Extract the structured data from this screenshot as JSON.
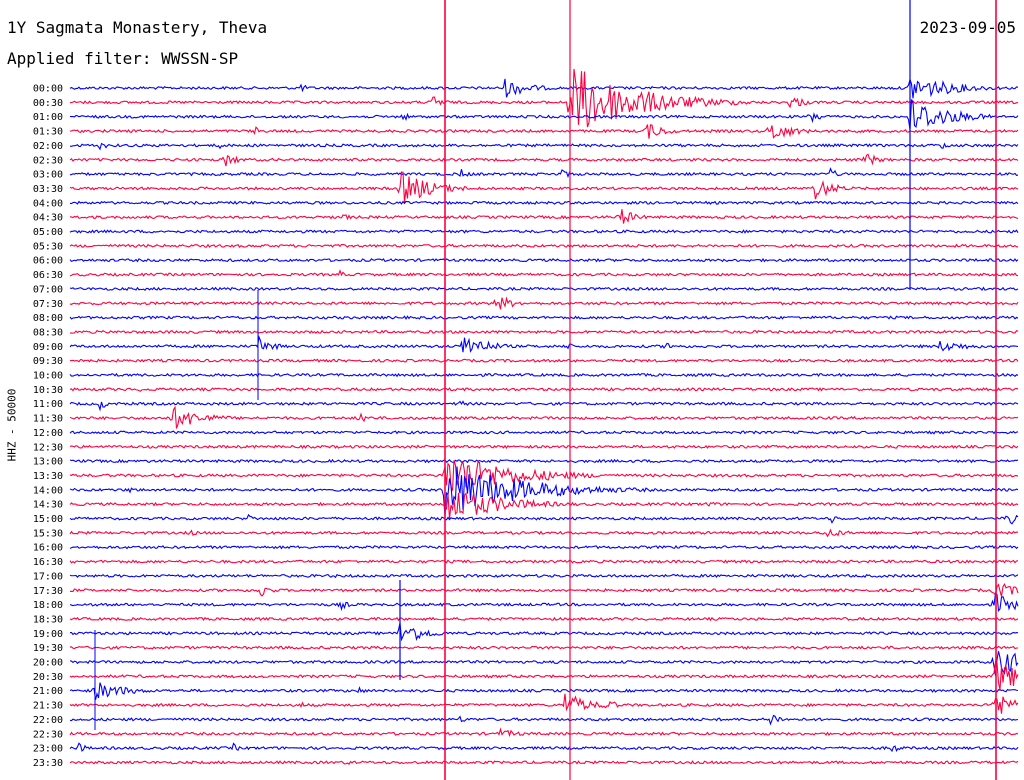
{
  "header": {
    "station": "1Y Sagmata Monastery, Theva",
    "filter": "Applied filter: WWSSN-SP",
    "date": "2023-09-05"
  },
  "chart_data": {
    "type": "line",
    "title": "1Y Sagmata Monastery, Theva",
    "subtitle": "Applied filter: WWSSN-SP",
    "date": "2023-09-05",
    "ylabel": "HHZ - 50000",
    "row_times": [
      "00:00",
      "00:30",
      "01:00",
      "01:30",
      "02:00",
      "02:30",
      "03:00",
      "03:30",
      "04:00",
      "04:30",
      "05:00",
      "05:30",
      "06:00",
      "06:30",
      "07:00",
      "07:30",
      "08:00",
      "08:30",
      "09:00",
      "09:30",
      "10:00",
      "10:30",
      "11:00",
      "11:30",
      "12:00",
      "12:30",
      "13:00",
      "13:30",
      "14:00",
      "14:30",
      "15:00",
      "15:30",
      "16:00",
      "16:30",
      "17:00",
      "17:30",
      "18:00",
      "18:30",
      "19:00",
      "19:30",
      "20:00",
      "20:30",
      "21:00",
      "21:30",
      "22:00",
      "22:30",
      "23:00",
      "23:30"
    ],
    "trace_colors": [
      "#0000ff",
      "#ff0040"
    ],
    "legend": "none",
    "grid": false
  }
}
